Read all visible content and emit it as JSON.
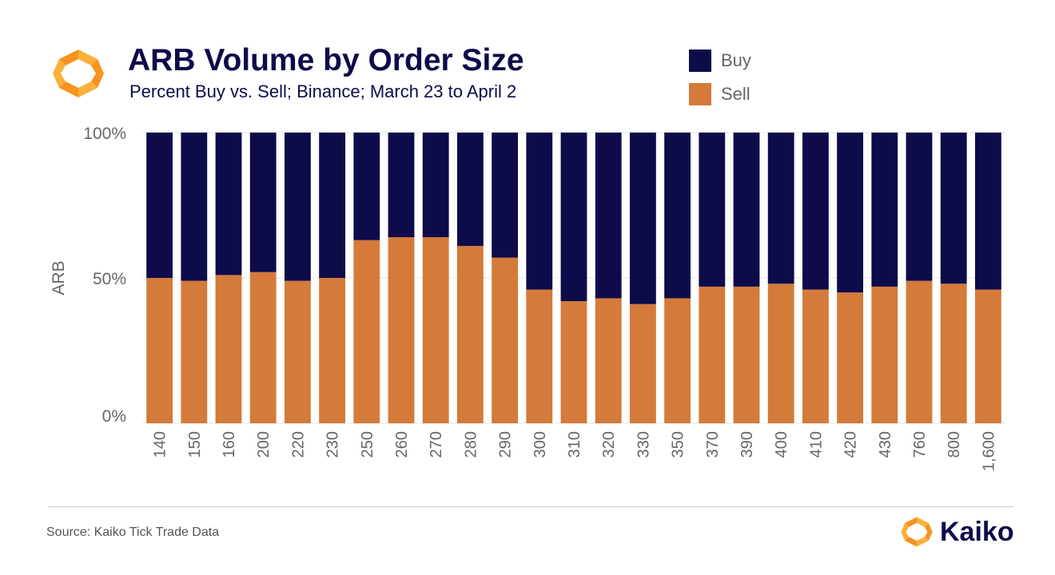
{
  "header": {
    "title": "ARB Volume by Order Size",
    "subtitle": "Percent Buy vs. Sell; Binance; March 23 to April 2"
  },
  "legend": [
    {
      "label": "Buy",
      "color": "#0d0b4a"
    },
    {
      "label": "Sell",
      "color": "#d47a3a"
    }
  ],
  "footer": {
    "source": "Source: Kaiko Tick Trade Data",
    "brand": "Kaiko"
  },
  "icons": {
    "logo": "kaiko-logo-icon"
  },
  "colors": {
    "buy": "#0d0b4a",
    "sell": "#d47a3a",
    "logo_orange": "#f7931e",
    "logo_orange_light": "#fbb03b"
  },
  "chart_data": {
    "type": "bar",
    "stacked": true,
    "categories": [
      "140",
      "150",
      "160",
      "200",
      "220",
      "230",
      "250",
      "260",
      "270",
      "280",
      "290",
      "300",
      "310",
      "320",
      "330",
      "350",
      "370",
      "390",
      "400",
      "410",
      "420",
      "430",
      "760",
      "800",
      "1,600"
    ],
    "series": [
      {
        "name": "Sell",
        "values": [
          50,
          49,
          51,
          52,
          49,
          50,
          63,
          64,
          64,
          61,
          57,
          46,
          42,
          43,
          41,
          43,
          47,
          47,
          48,
          46,
          45,
          47,
          49,
          48,
          46
        ]
      },
      {
        "name": "Buy",
        "values": [
          50,
          51,
          49,
          48,
          51,
          50,
          37,
          36,
          36,
          39,
          43,
          54,
          58,
          57,
          59,
          57,
          53,
          53,
          52,
          54,
          55,
          53,
          51,
          52,
          54
        ]
      }
    ],
    "ylabel": "ARB",
    "ylim": [
      0,
      100
    ],
    "yticks": [
      "0%",
      "50%",
      "100%"
    ],
    "grid": true,
    "legend_position": "top-right"
  }
}
